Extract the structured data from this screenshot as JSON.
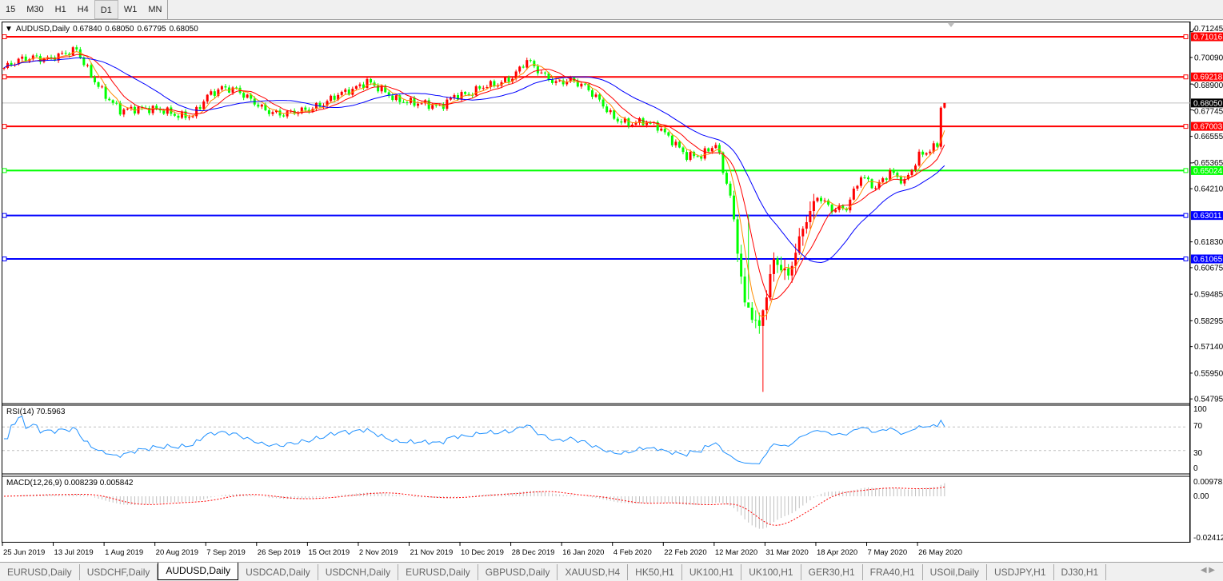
{
  "toolbar": {
    "timeframes": [
      "15",
      "M30",
      "H1",
      "H4",
      "D1",
      "W1",
      "MN"
    ],
    "active": "D1"
  },
  "header": {
    "symbol": "AUDUSD,Daily",
    "open": "0.67840",
    "high": "0.68050",
    "low": "0.67795",
    "close": "0.68050"
  },
  "rsi": {
    "label": "RSI(14) 70.5963",
    "levels": [
      "100",
      "70",
      "30",
      "0"
    ]
  },
  "macd": {
    "label": "MACD(12,26,9) 0.008239 0.005842",
    "levels": [
      "0.009781",
      "0.00",
      "-0.024125"
    ]
  },
  "tabs": [
    "EURUSD,Daily",
    "USDCHF,Daily",
    "AUDUSD,Daily",
    "USDCAD,Daily",
    "USDCNH,Daily",
    "EURUSD,Daily",
    "GBPUSD,Daily",
    "XAUUSD,H4",
    "HK50,H1",
    "UK100,H1",
    "UK100,H1",
    "GER30,H1",
    "FRA40,H1",
    "USOil,Daily",
    "USDJPY,H1",
    "DJ30,H1"
  ],
  "active_tab": "AUDUSD,Daily",
  "chart_data": {
    "type": "candlestick",
    "title": "AUDUSD,Daily",
    "ylim": [
      0.54795,
      0.71245
    ],
    "price_ticks": [
      "0.71245",
      "0.70090",
      "0.68900",
      "0.67745",
      "0.66555",
      "0.65365",
      "0.64210",
      "0.61830",
      "0.60675",
      "0.59485",
      "0.58295",
      "0.57140",
      "0.55950",
      "0.54795"
    ],
    "date_ticks": [
      "25 Jun 2019",
      "13 Jul 2019",
      "1 Aug 2019",
      "20 Aug 2019",
      "7 Sep 2019",
      "26 Sep 2019",
      "15 Oct 2019",
      "2 Nov 2019",
      "21 Nov 2019",
      "10 Dec 2019",
      "28 Dec 2019",
      "16 Jan 2020",
      "4 Feb 2020",
      "22 Feb 2020",
      "12 Mar 2020",
      "31 Mar 2020",
      "18 Apr 2020",
      "7 May 2020",
      "26 May 2020"
    ],
    "approx_closes_every_4_bars": [
      0.6962,
      0.6998,
      0.7009,
      0.7001,
      0.7023,
      0.7044,
      0.6926,
      0.6837,
      0.6772,
      0.6779,
      0.6779,
      0.6772,
      0.6747,
      0.6747,
      0.6837,
      0.6872,
      0.6865,
      0.6819,
      0.6772,
      0.6754,
      0.6765,
      0.6776,
      0.6801,
      0.6844,
      0.6865,
      0.6901,
      0.6865,
      0.6819,
      0.6808,
      0.6801,
      0.6787,
      0.6837,
      0.6844,
      0.688,
      0.689,
      0.6919,
      0.6998,
      0.6937,
      0.6894,
      0.6908,
      0.688,
      0.6815,
      0.6736,
      0.6711,
      0.6722,
      0.6701,
      0.6636,
      0.6568,
      0.6568,
      0.6622,
      0.6389,
      0.5906,
      0.5799,
      0.6103,
      0.6031,
      0.6246,
      0.6389,
      0.6328,
      0.6335,
      0.6479,
      0.6425,
      0.6497,
      0.645,
      0.6568,
      0.6604,
      0.6665
    ],
    "last_close": 0.6805,
    "current_price": {
      "label": "0.68050",
      "value": 0.6805,
      "color": "#000000"
    },
    "levels": [
      {
        "label": "0.71016",
        "value": 0.71016,
        "color": "#ff0000"
      },
      {
        "label": "0.69218",
        "value": 0.69218,
        "color": "#ff0000"
      },
      {
        "label": "0.67003",
        "value": 0.67003,
        "color": "#ff0000"
      },
      {
        "label": "0.65024",
        "value": 0.65024,
        "color": "#00ff00"
      },
      {
        "label": "0.63011",
        "value": 0.63011,
        "color": "#0000ff"
      },
      {
        "label": "0.61065",
        "value": 0.61065,
        "color": "#0000ff"
      }
    ],
    "colors": {
      "bull": "#ff0000",
      "bear": "#00ff00",
      "ma_fast": "#ff8c00",
      "ma_mid": "#ff0000",
      "ma_slow": "#0000ff",
      "rsi": "#1e90ff",
      "macd_hist": "#c0c0c0",
      "macd_signal": "#ff0000"
    }
  }
}
